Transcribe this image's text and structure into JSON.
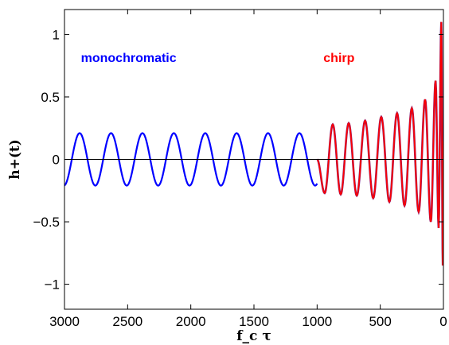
{
  "chart_data": {
    "type": "line",
    "xlabel": "f_c τ",
    "ylabel": "h+(t)",
    "xlim": [
      3000,
      0
    ],
    "ylim": [
      -1.2,
      1.2
    ],
    "x_reversed": true,
    "grid": false,
    "x_ticks": [
      3000,
      2500,
      2000,
      1500,
      1000,
      500,
      0
    ],
    "x_tick_labels": [
      "3000",
      "2500",
      "2000",
      "1500",
      "1000",
      "500",
      "0"
    ],
    "y_ticks": [
      1,
      0.5,
      0,
      -0.5,
      -1
    ],
    "y_tick_labels": [
      "1",
      "0.5",
      "0",
      "−0.5",
      "−1"
    ],
    "zero_line": 0,
    "colors": {
      "monochromatic": "#0000ff",
      "chirp": "#ff0000",
      "overlap": "#8b1a6e",
      "axes": "#000000"
    },
    "annotations": [
      {
        "text": "monochromatic",
        "x": 2870,
        "y": 0.78,
        "color": "#0000ff"
      },
      {
        "text": "chirp",
        "x": 950,
        "y": 0.78,
        "color": "#ff0000"
      }
    ],
    "series": [
      {
        "name": "monochromatic",
        "color": "#0000ff",
        "x_range": [
          3000,
          1000
        ],
        "amplitude": 0.21,
        "crests": [
          2880,
          2640,
          2390,
          2140,
          1890,
          1640,
          1390,
          1140
        ]
      },
      {
        "name": "chirp",
        "color": "#ff0000",
        "x_range": [
          1000,
          0
        ],
        "crests": [
          876,
          750,
          620,
          492,
          367,
          250,
          145,
          62,
          17
        ],
        "crest_values": [
          0.28,
          0.29,
          0.31,
          0.34,
          0.37,
          0.41,
          0.48,
          0.63,
          1.1
        ],
        "troughs": [
          940,
          813,
          686,
          556,
          428,
          308,
          196,
          100,
          38,
          5
        ],
        "trough_values": [
          -0.27,
          -0.28,
          -0.29,
          -0.31,
          -0.34,
          -0.37,
          -0.42,
          -0.5,
          -0.55,
          -0.85
        ]
      }
    ]
  }
}
